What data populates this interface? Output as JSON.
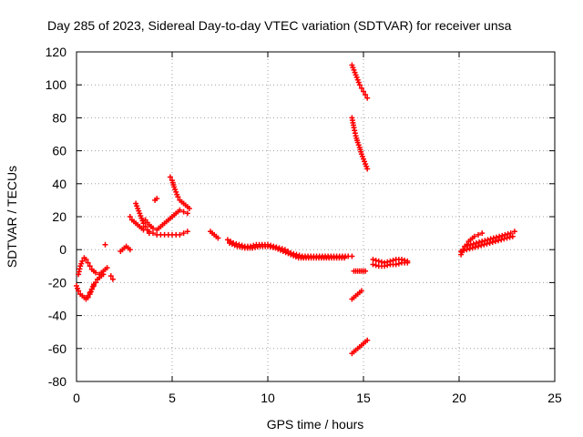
{
  "chart_data": {
    "type": "scatter",
    "title": "Day 285 of 2023, Sidereal Day-to-day VTEC variation (SDTVAR) for receiver unsa",
    "xlabel": "GPS time / hours",
    "ylabel": "SDTVAR / TECUs",
    "xlim": [
      0,
      25
    ],
    "ylim": [
      -80,
      120
    ],
    "xticks": [
      0,
      5,
      10,
      15,
      20,
      25
    ],
    "yticks": [
      -80,
      -60,
      -40,
      -20,
      0,
      20,
      40,
      60,
      80,
      100,
      120
    ],
    "grid": true,
    "marker": "+",
    "color": "#ff0000",
    "segments": [
      {
        "x": [
          0.0,
          0.1,
          0.2,
          0.3,
          0.4,
          0.5,
          0.6,
          0.7,
          0.8,
          0.9
        ],
        "y": [
          -22,
          -25,
          -27,
          -28,
          -29,
          -30,
          -29,
          -27,
          -24,
          -21
        ]
      },
      {
        "x": [
          0.1,
          0.2,
          0.3,
          0.4,
          0.5,
          0.6,
          0.7,
          0.8,
          1.0,
          1.2,
          1.4,
          1.6
        ],
        "y": [
          -15,
          -10,
          -7,
          -5,
          -6,
          -8,
          -10,
          -12,
          -14,
          -15,
          -13,
          -11
        ]
      },
      {
        "x": [
          0.6,
          0.7,
          0.8,
          0.9,
          1.0,
          1.1,
          1.2,
          1.3,
          1.4
        ],
        "y": [
          -28,
          -26,
          -24,
          -22,
          -20,
          -18,
          -17,
          -16,
          -15
        ]
      },
      {
        "x": [
          1.5
        ],
        "y": [
          3
        ]
      },
      {
        "x": [
          1.8,
          1.9
        ],
        "y": [
          -16,
          -18
        ]
      },
      {
        "x": [
          2.3,
          2.4,
          2.5,
          2.6,
          2.7,
          2.8
        ],
        "y": [
          -1,
          0,
          1,
          2,
          1,
          0
        ]
      },
      {
        "x": [
          2.8,
          2.9,
          3.0,
          3.1,
          3.2,
          3.3,
          3.4,
          3.5
        ],
        "y": [
          20,
          18,
          17,
          16,
          15,
          14,
          13,
          12
        ]
      },
      {
        "x": [
          3.1,
          3.2,
          3.3,
          3.4,
          3.5,
          3.6,
          3.7,
          3.8
        ],
        "y": [
          28,
          25,
          22,
          19,
          16,
          14,
          12,
          11
        ]
      },
      {
        "x": [
          3.8,
          4.0,
          4.2,
          4.4,
          4.6,
          4.8,
          5.0,
          5.2,
          5.4,
          5.6,
          5.8
        ],
        "y": [
          10,
          10,
          9,
          9,
          9,
          9,
          9,
          9,
          9,
          10,
          11
        ]
      },
      {
        "x": [
          3.6,
          3.8,
          4.0
        ],
        "y": [
          18,
          15,
          13
        ]
      },
      {
        "x": [
          4.1,
          4.2
        ],
        "y": [
          30,
          31
        ]
      },
      {
        "x": [
          4.9,
          5.0,
          5.1,
          5.2,
          5.3,
          5.4,
          5.5,
          5.6,
          5.7,
          5.8,
          5.9
        ],
        "y": [
          44,
          42,
          38,
          35,
          32,
          30,
          29,
          28,
          27,
          26,
          25
        ]
      },
      {
        "x": [
          4.2,
          4.4,
          4.6,
          4.8,
          5.0,
          5.2,
          5.4,
          5.6,
          5.8
        ],
        "y": [
          12,
          14,
          16,
          18,
          20,
          22,
          24,
          23,
          22
        ]
      },
      {
        "x": [
          7.0,
          7.1,
          7.2,
          7.3,
          7.4
        ],
        "y": [
          11,
          10,
          9,
          8,
          7
        ]
      },
      {
        "x": [
          7.9,
          8.2,
          8.5,
          8.8,
          9.1,
          9.4,
          9.7,
          10.0,
          10.3,
          10.6,
          10.9,
          11.2,
          11.5,
          11.8,
          12.1,
          12.4,
          12.7,
          13.0,
          13.3,
          13.6,
          13.9,
          14.2,
          14.4
        ],
        "y": [
          6,
          4,
          3,
          2,
          2,
          3,
          3,
          3,
          2,
          1,
          0,
          -2,
          -3,
          -4,
          -4,
          -4,
          -4,
          -4,
          -4,
          -4,
          -4,
          -4,
          -4
        ]
      },
      {
        "x": [
          8.0,
          8.4,
          8.8,
          9.2,
          9.6,
          10.0,
          10.4,
          10.8,
          11.2,
          11.6,
          12.0,
          12.4,
          12.8,
          13.2,
          13.6,
          14.0
        ],
        "y": [
          4,
          2,
          1,
          1,
          2,
          2,
          1,
          -1,
          -3,
          -5,
          -5,
          -5,
          -5,
          -5,
          -5,
          -5
        ]
      },
      {
        "x": [
          14.4,
          14.5,
          14.6,
          14.7,
          14.8,
          14.9,
          15.0,
          15.1,
          15.2
        ],
        "y": [
          112,
          109,
          106,
          103,
          100,
          98,
          96,
          94,
          92
        ]
      },
      {
        "x": [
          14.4,
          14.5,
          14.6,
          14.7,
          14.8,
          14.9,
          15.0,
          15.1,
          15.2
        ],
        "y": [
          80,
          74,
          69,
          65,
          62,
          58,
          55,
          52,
          49
        ]
      },
      {
        "x": [
          14.4,
          14.5,
          14.6,
          14.7,
          14.8,
          14.9
        ],
        "y": [
          -30,
          -29,
          -28,
          -27,
          -26,
          -25
        ]
      },
      {
        "x": [
          14.4,
          14.5,
          14.6,
          14.7,
          14.8,
          14.9,
          15.0,
          15.1,
          15.2
        ],
        "y": [
          -63,
          -62,
          -61,
          -60,
          -59,
          -58,
          -57,
          -56,
          -55
        ]
      },
      {
        "x": [
          14.5,
          14.6,
          14.7,
          14.8,
          14.9,
          15.0,
          15.1
        ],
        "y": [
          -13,
          -13,
          -13,
          -13,
          -13,
          -13,
          -13
        ]
      },
      {
        "x": [
          15.5,
          15.8,
          16.1,
          16.4,
          16.7,
          17.0,
          17.3
        ],
        "y": [
          -9,
          -10,
          -10,
          -9,
          -9,
          -8,
          -8
        ]
      },
      {
        "x": [
          15.5,
          15.8,
          16.1,
          16.4,
          16.7,
          17.0,
          17.3
        ],
        "y": [
          -6,
          -7,
          -8,
          -7,
          -6,
          -6,
          -7
        ]
      },
      {
        "x": [
          20.1,
          20.2,
          20.3,
          20.4,
          20.5,
          20.6,
          20.8,
          21.0,
          21.2
        ],
        "y": [
          -3,
          0,
          2,
          3,
          5,
          6,
          8,
          9,
          10
        ]
      },
      {
        "x": [
          20.1,
          20.4,
          20.7,
          21.0,
          21.3,
          21.6,
          21.9,
          22.2,
          22.5,
          22.8
        ],
        "y": [
          -1,
          0,
          1,
          2,
          3,
          4,
          5,
          6,
          7,
          8
        ]
      },
      {
        "x": [
          20.3,
          20.6,
          20.9,
          21.2,
          21.5,
          21.8,
          22.1,
          22.4,
          22.7,
          22.9
        ],
        "y": [
          2,
          3,
          4,
          5,
          6,
          7,
          8,
          9,
          10,
          11
        ]
      }
    ]
  }
}
